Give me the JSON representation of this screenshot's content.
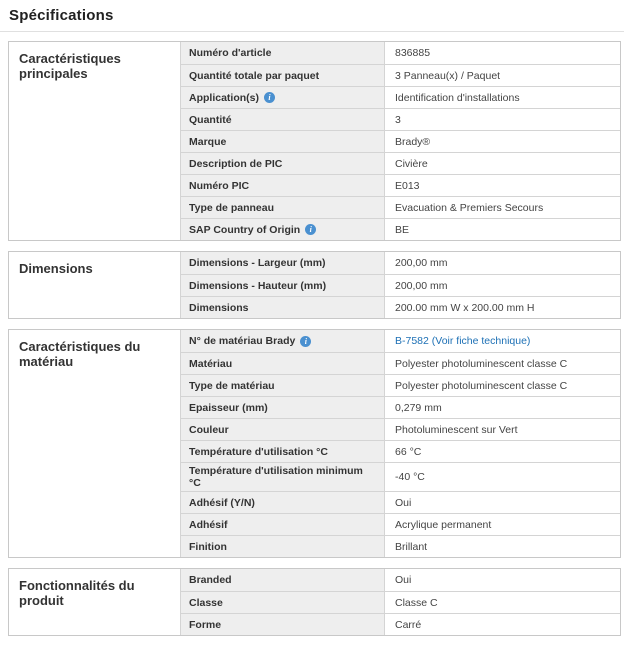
{
  "page_title": "Spécifications",
  "colors": {
    "label_bg": "#eeeeee",
    "box_border": "#c8c8c8",
    "row_border": "#d4d4d4",
    "divider": "#e0e0e0",
    "link": "#1d70b5",
    "info_icon": "#4a90d0"
  },
  "icons": {
    "info": "i"
  },
  "sections": [
    {
      "title": "Caractéristiques principales",
      "rows": [
        {
          "label": "Numéro d'article",
          "value": "836885"
        },
        {
          "label": "Quantité totale par paquet",
          "value": "3 Panneau(x) / Paquet"
        },
        {
          "label": "Application(s)",
          "info": true,
          "value": "Identification d'installations"
        },
        {
          "label": "Quantité",
          "value": "3"
        },
        {
          "label": "Marque",
          "value": "Brady®"
        },
        {
          "label": "Description de PIC",
          "value": "Civière"
        },
        {
          "label": "Numéro PIC",
          "value": "E013"
        },
        {
          "label": "Type de panneau",
          "value": "Evacuation & Premiers Secours"
        },
        {
          "label": "SAP Country of Origin",
          "info": true,
          "value": "BE"
        }
      ]
    },
    {
      "title": "Dimensions",
      "rows": [
        {
          "label": "Dimensions - Largeur (mm)",
          "value": "200,00 mm"
        },
        {
          "label": "Dimensions - Hauteur (mm)",
          "value": "200,00 mm"
        },
        {
          "label": "Dimensions",
          "value": "200.00 mm W x 200.00 mm H"
        }
      ]
    },
    {
      "title": "Caractéristiques du matériau",
      "rows": [
        {
          "label": "N° de matériau Brady",
          "info": true,
          "value": "B-7582 (Voir fiche technique)",
          "link": true
        },
        {
          "label": "Matériau",
          "value": "Polyester photoluminescent classe C"
        },
        {
          "label": "Type de matériau",
          "value": "Polyester photoluminescent classe C"
        },
        {
          "label": "Epaisseur (mm)",
          "value": "0,279 mm"
        },
        {
          "label": "Couleur",
          "value": "Photoluminescent sur Vert"
        },
        {
          "label": "Température d'utilisation °C",
          "value": "66 °C"
        },
        {
          "label": "Température d'utilisation minimum °C",
          "value": "-40 °C"
        },
        {
          "label": "Adhésif (Y/N)",
          "value": "Oui"
        },
        {
          "label": "Adhésif",
          "value": "Acrylique permanent"
        },
        {
          "label": "Finition",
          "value": "Brillant"
        }
      ]
    },
    {
      "title": "Fonctionnalités du produit",
      "rows": [
        {
          "label": "Branded",
          "value": "Oui"
        },
        {
          "label": "Classe",
          "value": "Classe C"
        },
        {
          "label": "Forme",
          "value": "Carré"
        }
      ]
    }
  ]
}
